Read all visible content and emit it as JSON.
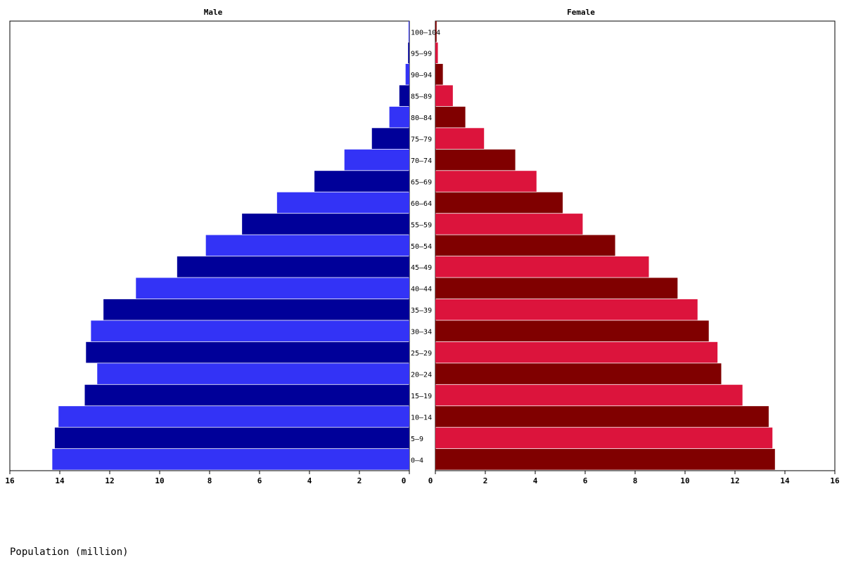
{
  "chart_data": {
    "type": "bar",
    "orientation": "horizontal",
    "layout": "population-pyramid",
    "xlabel": "Population (million)",
    "xlim": [
      0,
      16
    ],
    "xticks": [
      0,
      2,
      4,
      6,
      8,
      10,
      12,
      14,
      16
    ],
    "categories": [
      "0-4",
      "5-9",
      "10-14",
      "15-19",
      "20-24",
      "25-29",
      "30-34",
      "35-39",
      "40-44",
      "45-49",
      "50-54",
      "55-59",
      "60-64",
      "65-69",
      "70-74",
      "75-79",
      "80-84",
      "85-89",
      "90-94",
      "95-99",
      "100-104"
    ],
    "category_labels": [
      "0–4",
      "5–9",
      "10–14",
      "15–19",
      "20–24",
      "25–29",
      "30–34",
      "35–39",
      "40–44",
      "45–49",
      "50–54",
      "55–59",
      "60–64",
      "65–69",
      "70–74",
      "75–79",
      "80–84",
      "85–89",
      "90–94",
      "95–99",
      "100–104"
    ],
    "series": [
      {
        "name": "Male",
        "side": "left",
        "colors": [
          "#3333f6",
          "#000099"
        ],
        "values": [
          14.3,
          14.2,
          14.05,
          13.0,
          12.5,
          12.95,
          12.75,
          12.25,
          10.95,
          9.3,
          8.15,
          6.7,
          5.3,
          3.8,
          2.6,
          1.5,
          0.8,
          0.4,
          0.15,
          0.05,
          0.03
        ]
      },
      {
        "name": "Female",
        "side": "right",
        "colors": [
          "#800000",
          "#dc143c"
        ],
        "values": [
          13.6,
          13.5,
          13.35,
          12.3,
          11.45,
          11.3,
          10.95,
          10.5,
          9.7,
          8.55,
          7.2,
          5.9,
          5.1,
          4.05,
          3.2,
          1.95,
          1.2,
          0.7,
          0.3,
          0.1,
          0.05
        ]
      }
    ]
  }
}
